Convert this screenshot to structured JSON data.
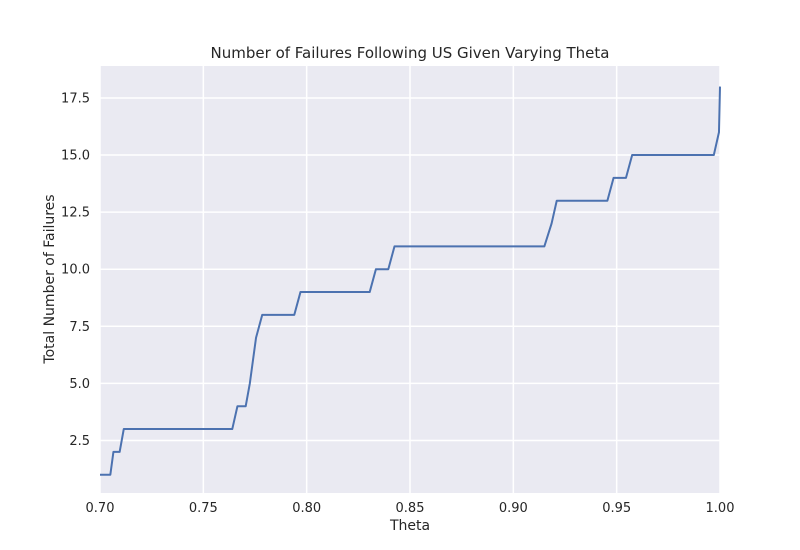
{
  "chart_data": {
    "type": "line",
    "title": "Number of Failures Following US Given Varying Theta",
    "xlabel": "Theta",
    "ylabel": "Total Number of Failures",
    "xlim": [
      0.7,
      1.0
    ],
    "ylim": [
      0.2,
      18.9
    ],
    "xticks": [
      0.7,
      0.75,
      0.8,
      0.85,
      0.9,
      0.95,
      1.0
    ],
    "xtick_labels": [
      "0.70",
      "0.75",
      "0.80",
      "0.85",
      "0.90",
      "0.95",
      "1.00"
    ],
    "yticks": [
      2.5,
      5.0,
      7.5,
      10.0,
      12.5,
      15.0,
      17.5
    ],
    "ytick_labels": [
      "2.5",
      "5.0",
      "7.5",
      "10.0",
      "12.5",
      "15.0",
      "17.5"
    ],
    "grid": true,
    "colors": {
      "line": "#4c72b0",
      "plot_bg": "#eaeaf2",
      "grid": "#ffffff"
    },
    "series": [
      {
        "x": [
          0.7,
          0.702,
          0.705,
          0.7065,
          0.708,
          0.7095,
          0.7115,
          0.714,
          0.74,
          0.764,
          0.7665,
          0.7685,
          0.7705,
          0.7725,
          0.7755,
          0.7785,
          0.7815,
          0.794,
          0.797,
          0.8,
          0.8305,
          0.8335,
          0.8365,
          0.8395,
          0.8425,
          0.846,
          0.88,
          0.915,
          0.9185,
          0.921,
          0.935,
          0.9455,
          0.9485,
          0.9515,
          0.9545,
          0.9575,
          0.96,
          0.98,
          0.997,
          0.9995,
          1.0
        ],
        "y": [
          1,
          1,
          1,
          2,
          2,
          2,
          3,
          3,
          3,
          3,
          4,
          4,
          4,
          5,
          7,
          8,
          8,
          8,
          9,
          9,
          9,
          10,
          10,
          10,
          11,
          11,
          11,
          11,
          12,
          13,
          13,
          13,
          14,
          14,
          14,
          15,
          15,
          15,
          15,
          16,
          18
        ]
      }
    ]
  }
}
